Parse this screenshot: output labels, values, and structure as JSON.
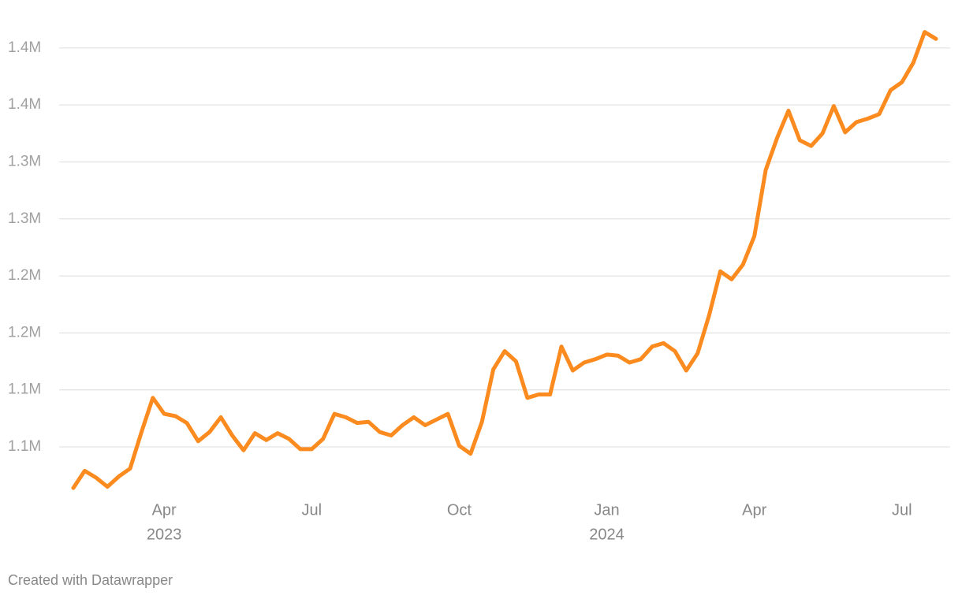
{
  "chart_data": {
    "type": "line",
    "categories": [
      null,
      null,
      null,
      null,
      null,
      null,
      null,
      null,
      "Apr",
      null,
      null,
      null,
      null,
      null,
      null,
      null,
      null,
      null,
      null,
      null,
      null,
      "Jul",
      null,
      null,
      null,
      null,
      null,
      null,
      null,
      null,
      null,
      null,
      null,
      null,
      "Oct",
      null,
      null,
      null,
      null,
      null,
      null,
      null,
      null,
      null,
      null,
      null,
      null,
      "Jan",
      null,
      null,
      null,
      null,
      null,
      null,
      null,
      null,
      null,
      null,
      null,
      null,
      "Apr",
      null,
      null,
      null,
      null,
      null,
      null,
      null,
      null,
      null,
      null,
      null,
      null,
      "Jul",
      null,
      null,
      null
    ],
    "category_groups": [
      null,
      null,
      null,
      null,
      null,
      null,
      null,
      null,
      "2023",
      null,
      null,
      null,
      null,
      null,
      null,
      null,
      null,
      null,
      null,
      null,
      null,
      null,
      null,
      null,
      null,
      null,
      null,
      null,
      null,
      null,
      null,
      null,
      null,
      null,
      null,
      null,
      null,
      null,
      null,
      null,
      null,
      null,
      null,
      null,
      null,
      null,
      null,
      "2024",
      null,
      null,
      null,
      null,
      null,
      null,
      null,
      null,
      null,
      null,
      null,
      null,
      null,
      null,
      null,
      null,
      null,
      null,
      null,
      null,
      null,
      null,
      null,
      null,
      null,
      null,
      null,
      null,
      null
    ],
    "values": [
      1014000,
      1029000,
      1023000,
      1015000,
      1024000,
      1031000,
      1063000,
      1093000,
      1079000,
      1077000,
      1071000,
      1055000,
      1063000,
      1076000,
      1060000,
      1047000,
      1062000,
      1056000,
      1062000,
      1057000,
      1048000,
      1048000,
      1057000,
      1079000,
      1076000,
      1071000,
      1072000,
      1063000,
      1060000,
      1069000,
      1076000,
      1069000,
      1074000,
      1079000,
      1051000,
      1044000,
      1072000,
      1118000,
      1134000,
      1125000,
      1093000,
      1096000,
      1096000,
      1138000,
      1117000,
      1124000,
      1127000,
      1131000,
      1130000,
      1124000,
      1127000,
      1138000,
      1141000,
      1134000,
      1117000,
      1132000,
      1165000,
      1204000,
      1197000,
      1210000,
      1235000,
      1293000,
      1321000,
      1345000,
      1319000,
      1314000,
      1325000,
      1349000,
      1326000,
      1335000,
      1338000,
      1342000,
      1363000,
      1370000,
      1387000,
      1414000,
      1408000
    ],
    "color": "#fb8a1f",
    "ylim": [
      1000000,
      1430000
    ],
    "yticks": [
      {
        "value": 1050000,
        "label": "1.1M"
      },
      {
        "value": 1100000,
        "label": "1.1M"
      },
      {
        "value": 1150000,
        "label": "1.2M"
      },
      {
        "value": 1200000,
        "label": "1.2M"
      },
      {
        "value": 1250000,
        "label": "1.3M"
      },
      {
        "value": 1300000,
        "label": "1.3M"
      },
      {
        "value": 1350000,
        "label": "1.4M"
      },
      {
        "value": 1400000,
        "label": "1.4M"
      }
    ],
    "grid": true,
    "footer": "Created with Datawrapper"
  }
}
